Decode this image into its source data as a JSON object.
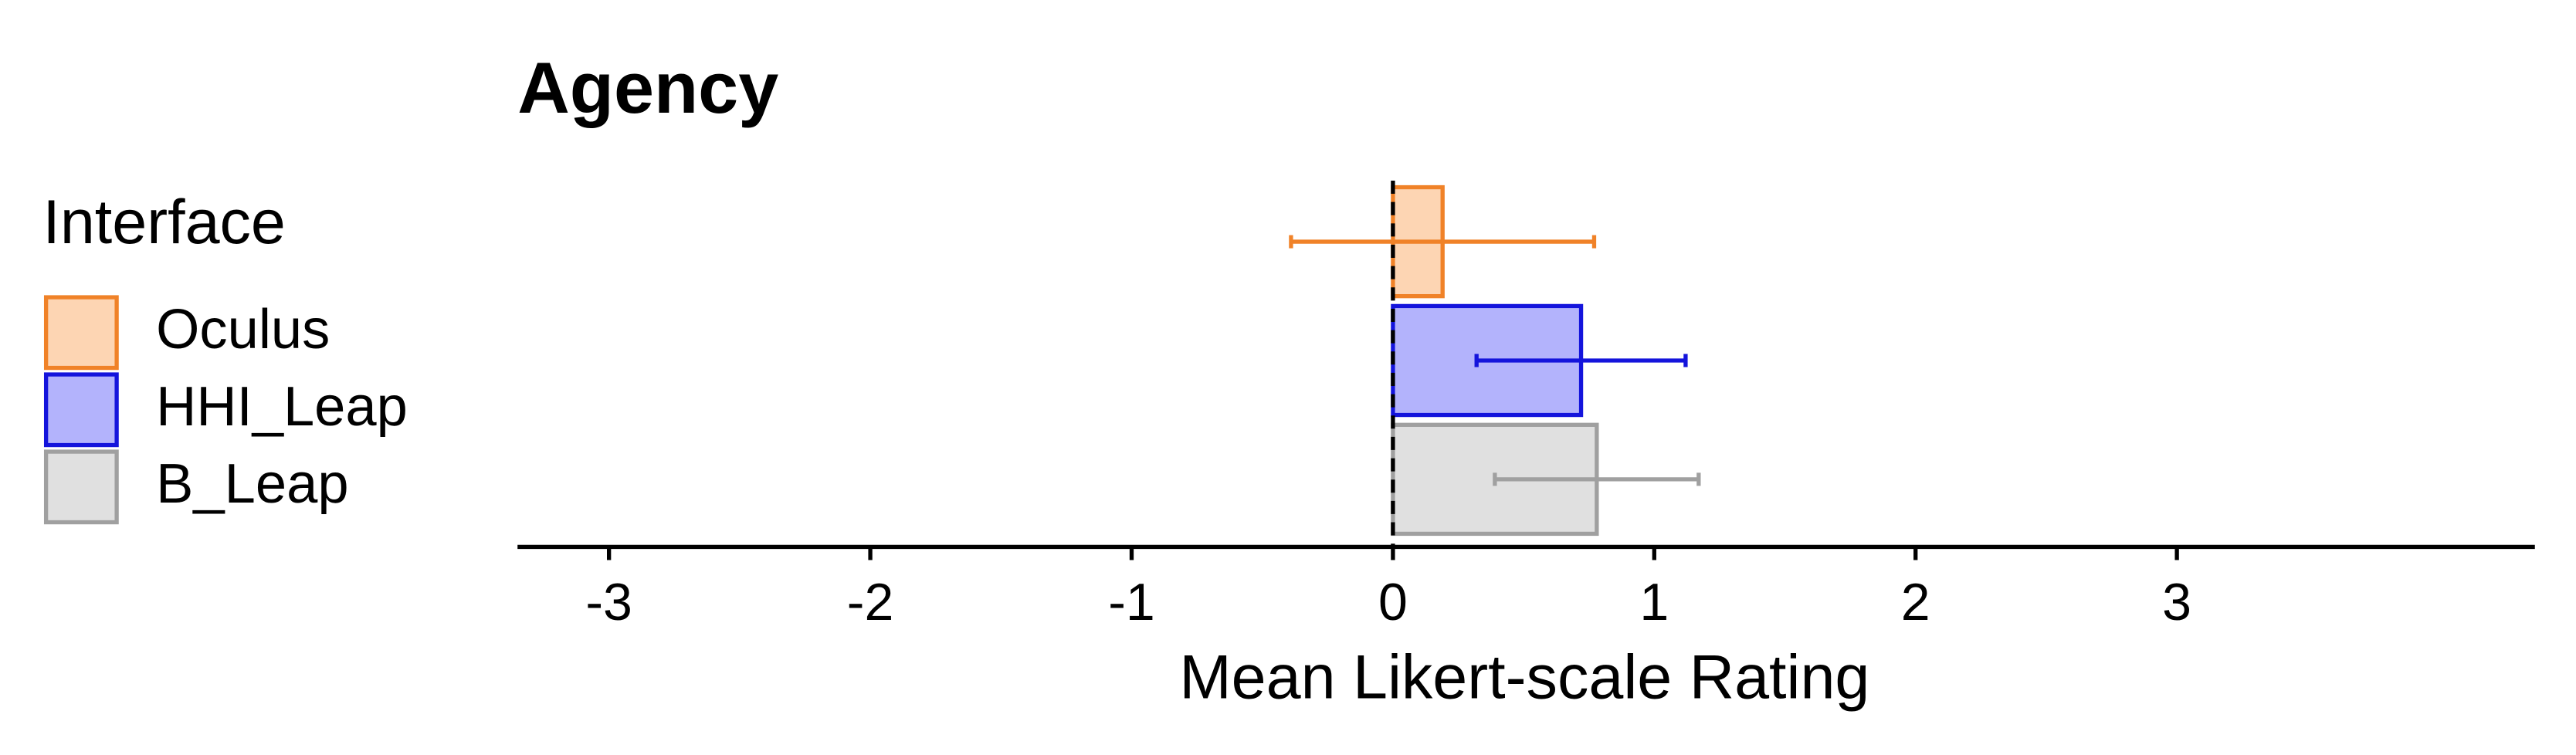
{
  "chart_data": {
    "type": "barh",
    "title": "Agency",
    "xlabel": "Mean Likert-scale Rating",
    "legend_title": "Interface",
    "categories": [
      "Oculus",
      "HHI_Leap",
      "B_Leap"
    ],
    "values": [
      0.19,
      0.72,
      0.78
    ],
    "errors": [
      0.58,
      0.4,
      0.39
    ],
    "colors": [
      "#fdd5b3",
      "#b3b3fc",
      "#e0e0e0"
    ],
    "edgecolors": [
      "#f08228",
      "#1414dc",
      "#a0a0a0"
    ],
    "xlim": [
      -3.35,
      4.37
    ],
    "xticks": [
      -3,
      -2,
      -1,
      0,
      1,
      2,
      3
    ],
    "legend": "left"
  }
}
